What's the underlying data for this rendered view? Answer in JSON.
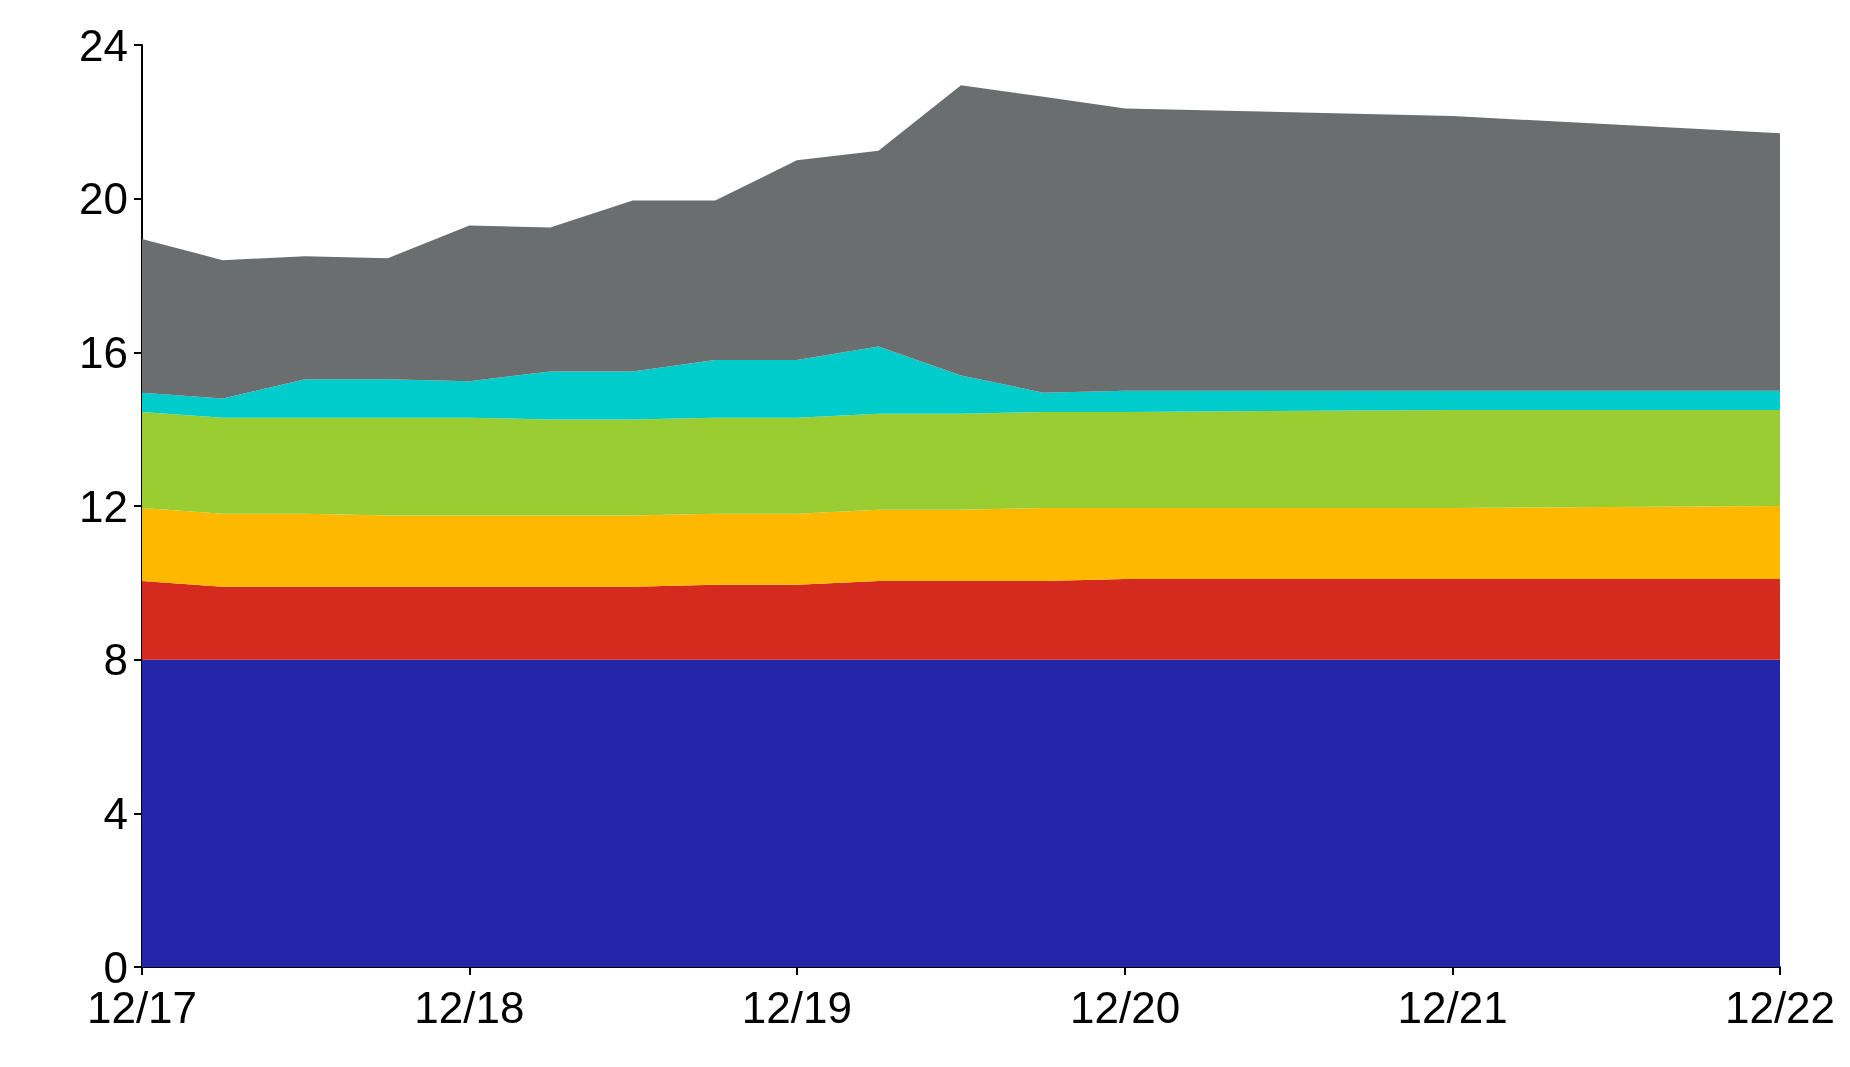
{
  "chart_data": {
    "type": "area",
    "stacked": true,
    "grid": false,
    "x": [
      "2017-12",
      "2018-03",
      "2018-06",
      "2018-09",
      "2018-12",
      "2019-03",
      "2019-06",
      "2019-09",
      "2019-12",
      "2020-03",
      "2020-06",
      "2020-09",
      "2020-12",
      "2021-12",
      "2022-12"
    ],
    "xlim": [
      "2017-12",
      "2022-12"
    ],
    "xticks": [
      {
        "value": "2017-12",
        "label": "12/17"
      },
      {
        "value": "2018-12",
        "label": "12/18"
      },
      {
        "value": "2019-12",
        "label": "12/19"
      },
      {
        "value": "2020-12",
        "label": "12/20"
      },
      {
        "value": "2021-12",
        "label": "12/21"
      },
      {
        "value": "2022-12",
        "label": "12/22"
      }
    ],
    "ylim": [
      0,
      24
    ],
    "yticks": [
      0,
      4,
      8,
      12,
      16,
      20,
      24
    ],
    "series": [
      {
        "color": "#2326a8",
        "values": [
          8,
          8,
          8,
          8,
          8,
          8,
          8,
          8,
          8,
          8,
          8,
          8,
          8,
          8,
          8
        ]
      },
      {
        "color": "#d52b1e",
        "values": [
          2.05,
          1.9,
          1.9,
          1.9,
          1.9,
          1.9,
          1.9,
          1.95,
          1.95,
          2.05,
          2.05,
          2.05,
          2.1,
          2.1,
          2.1
        ]
      },
      {
        "color": "#ffb800",
        "values": [
          1.9,
          1.9,
          1.9,
          1.85,
          1.85,
          1.85,
          1.85,
          1.85,
          1.85,
          1.85,
          1.85,
          1.9,
          1.85,
          1.85,
          1.9
        ]
      },
      {
        "color": "#9acd32",
        "values": [
          2.5,
          2.5,
          2.5,
          2.55,
          2.55,
          2.5,
          2.5,
          2.5,
          2.5,
          2.5,
          2.5,
          2.5,
          2.5,
          2.55,
          2.5
        ]
      },
      {
        "color": "#00cccc",
        "values": [
          0.5,
          0.5,
          1.0,
          1.0,
          0.95,
          1.25,
          1.25,
          1.5,
          1.5,
          1.75,
          1.0,
          0.5,
          0.55,
          0.5,
          0.5
        ]
      },
      {
        "color": "#6b6e6f",
        "values": [
          4.0,
          3.6,
          3.2,
          3.15,
          4.05,
          3.75,
          4.45,
          4.15,
          5.2,
          5.1,
          7.55,
          7.7,
          7.35,
          7.15,
          6.7
        ]
      }
    ]
  }
}
